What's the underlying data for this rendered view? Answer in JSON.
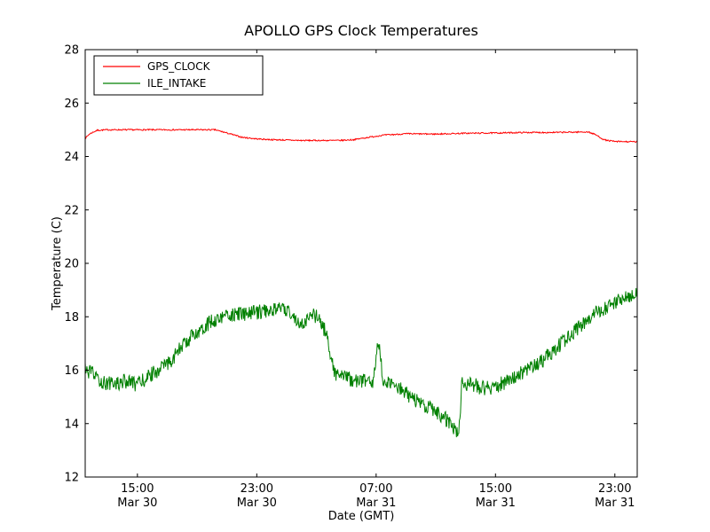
{
  "chart_data": {
    "type": "line",
    "title": "APOLLO GPS Clock Temperatures",
    "xlabel": "Date (GMT)",
    "ylabel": "Temperature (C)",
    "background_color": "#ffffff",
    "axis_color": "#000000",
    "grid": false,
    "legend_position": "upper left",
    "ylim": [
      12,
      28
    ],
    "yticks": [
      12,
      14,
      16,
      18,
      20,
      22,
      24,
      26,
      28
    ],
    "xlim": [
      11.5,
      48.5
    ],
    "x_unit": "hours since Mar 30 00:00 GMT",
    "xticks": [
      {
        "pos": 15,
        "time": "15:00",
        "date": "Mar 30"
      },
      {
        "pos": 23,
        "time": "23:00",
        "date": "Mar 30"
      },
      {
        "pos": 31,
        "time": "07:00",
        "date": "Mar 31"
      },
      {
        "pos": 39,
        "time": "15:00",
        "date": "Mar 31"
      },
      {
        "pos": 47,
        "time": "23:00",
        "date": "Mar 31"
      }
    ],
    "legend": [
      {
        "label": "GPS_CLOCK",
        "color": "#ff0000"
      },
      {
        "label": "ILE_INTAKE",
        "color": "#008000"
      }
    ],
    "series": [
      {
        "name": "GPS_CLOCK",
        "color": "#ff0000",
        "line_width": 1,
        "noise_amplitude": 0.025,
        "seed": 7,
        "points_per_hour": 24,
        "keypoints": [
          [
            11.5,
            24.68
          ],
          [
            11.8,
            24.85
          ],
          [
            12.3,
            24.98
          ],
          [
            13,
            25.0
          ],
          [
            20.2,
            25.0
          ],
          [
            21,
            24.88
          ],
          [
            22,
            24.72
          ],
          [
            23,
            24.66
          ],
          [
            24,
            24.63
          ],
          [
            26,
            24.6
          ],
          [
            28.5,
            24.6
          ],
          [
            29.5,
            24.63
          ],
          [
            30.5,
            24.72
          ],
          [
            31.5,
            24.8
          ],
          [
            33,
            24.85
          ],
          [
            35,
            24.84
          ],
          [
            37,
            24.87
          ],
          [
            39,
            24.88
          ],
          [
            41,
            24.9
          ],
          [
            43,
            24.9
          ],
          [
            45.2,
            24.92
          ],
          [
            45.7,
            24.82
          ],
          [
            46.3,
            24.62
          ],
          [
            47,
            24.56
          ],
          [
            48.5,
            24.55
          ]
        ]
      },
      {
        "name": "ILE_INTAKE",
        "color": "#008000",
        "line_width": 1,
        "noise_amplitude": 0.28,
        "seed": 12345,
        "points_per_hour": 26,
        "keypoints": [
          [
            11.5,
            16.0
          ],
          [
            12.0,
            15.85
          ],
          [
            12.6,
            15.55
          ],
          [
            13.5,
            15.5
          ],
          [
            14.3,
            15.6
          ],
          [
            15.0,
            15.45
          ],
          [
            15.6,
            15.7
          ],
          [
            16.2,
            15.95
          ],
          [
            17.0,
            16.2
          ],
          [
            18.0,
            16.9
          ],
          [
            19.0,
            17.45
          ],
          [
            20.0,
            17.85
          ],
          [
            21.0,
            18.05
          ],
          [
            22.0,
            18.1
          ],
          [
            23.0,
            18.15
          ],
          [
            24.0,
            18.3
          ],
          [
            25.0,
            18.25
          ],
          [
            25.8,
            17.85
          ],
          [
            26.1,
            17.6
          ],
          [
            26.5,
            18.1
          ],
          [
            27.2,
            17.95
          ],
          [
            27.7,
            17.3
          ],
          [
            28.0,
            16.3
          ],
          [
            28.3,
            15.85
          ],
          [
            29.0,
            15.7
          ],
          [
            30.0,
            15.6
          ],
          [
            30.8,
            15.5
          ],
          [
            31.05,
            16.7
          ],
          [
            31.2,
            16.9
          ],
          [
            31.45,
            15.7
          ],
          [
            32.0,
            15.45
          ],
          [
            32.7,
            15.3
          ],
          [
            33.3,
            15.0
          ],
          [
            34.0,
            14.75
          ],
          [
            34.7,
            14.55
          ],
          [
            35.3,
            14.35
          ],
          [
            36.0,
            14.0
          ],
          [
            36.35,
            13.65
          ],
          [
            36.6,
            13.9
          ],
          [
            36.72,
            15.5
          ],
          [
            37.5,
            15.45
          ],
          [
            38.3,
            15.3
          ],
          [
            39.2,
            15.45
          ],
          [
            40.0,
            15.6
          ],
          [
            41.0,
            16.0
          ],
          [
            42.0,
            16.3
          ],
          [
            43.0,
            16.8
          ],
          [
            44.0,
            17.3
          ],
          [
            45.0,
            17.8
          ],
          [
            45.8,
            18.2
          ],
          [
            46.5,
            18.35
          ],
          [
            47.3,
            18.6
          ],
          [
            48.0,
            18.75
          ],
          [
            48.5,
            18.9
          ]
        ]
      }
    ]
  }
}
